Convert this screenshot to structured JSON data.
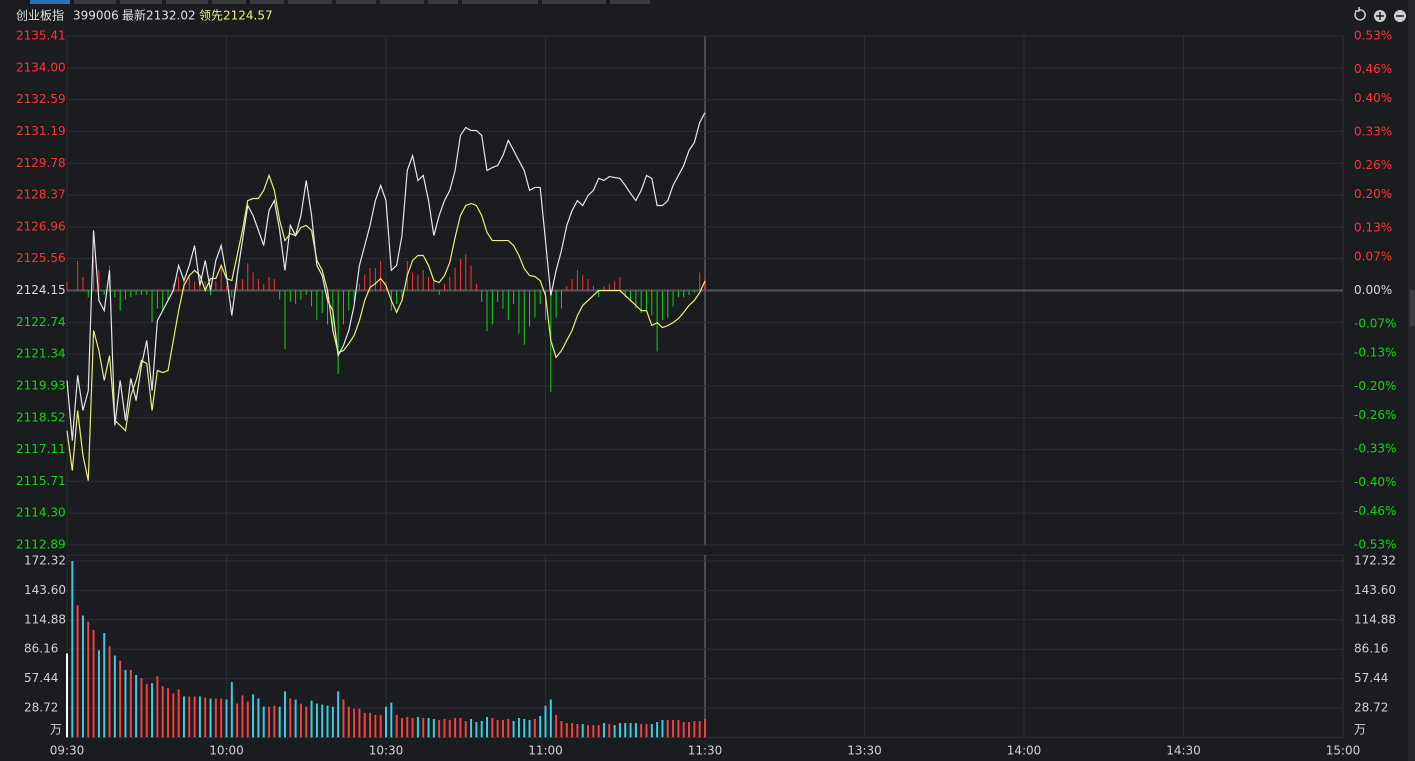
{
  "header": {
    "name": "创业板指",
    "code": "399006"
  },
  "chart_data": [
    {
      "type": "line",
      "xlim": [
        0,
        240
      ],
      "xticks": [
        {
          "value": 0,
          "label": "09:30"
        },
        {
          "value": 30,
          "label": "10:00"
        },
        {
          "value": 60,
          "label": "10:30"
        },
        {
          "value": 90,
          "label": "11:00"
        },
        {
          "value": 120,
          "label": "11:30"
        },
        {
          "value": 150,
          "label": "13:30"
        },
        {
          "value": 180,
          "label": "14:00"
        },
        {
          "value": 210,
          "label": "14:30"
        },
        {
          "value": 240,
          "label": "15:00"
        }
      ],
      "ylim": [
        2112.89,
        2135.41
      ],
      "yticks": [
        2135.41,
        {
          "value": 2134,
          "label": "2134.00"
        },
        2132.59,
        2131.19,
        2129.78,
        2128.37,
        2126.96,
        2125.56,
        2124.15,
        2122.74,
        2121.34,
        2119.93,
        2118.52,
        2117.11,
        2115.71,
        {
          "value": 2114.3,
          "label": "2114.30"
        },
        2112.89
      ],
      "y2lim": [
        -0.53,
        0.53
      ],
      "y2ticks": [
        {
          "value": 0.53,
          "label": "0.53%"
        },
        {
          "value": 0.46,
          "label": "0.46%"
        },
        {
          "value": 0.4,
          "label": "0.40%"
        },
        {
          "value": 0.33,
          "label": "0.33%"
        },
        {
          "value": 0.26,
          "label": "0.26%"
        },
        {
          "value": 0.2,
          "label": "0.20%"
        },
        {
          "value": 0.13,
          "label": "0.13%"
        },
        {
          "value": 0.07,
          "label": "0.07%"
        },
        {
          "value": 0,
          "label": "0.00%"
        },
        {
          "value": -0.07,
          "label": "-0.07%"
        },
        {
          "value": -0.13,
          "label": "-0.13%"
        },
        {
          "value": -0.2,
          "label": "-0.20%"
        },
        {
          "value": -0.26,
          "label": "-0.26%"
        },
        {
          "value": -0.33,
          "label": "-0.33%"
        },
        {
          "value": -0.4,
          "label": "-0.40%"
        },
        {
          "value": -0.46,
          "label": "-0.46%"
        },
        {
          "value": -0.53,
          "label": "-0.53%"
        }
      ],
      "up_color": "#ff3232",
      "down_color": "#11d411",
      "flat_color": "#d8d8d8",
      "series": [
        {
          "name": "最新",
          "color": "#e6e6e6",
          "values": [
            2120.17,
            2117.51,
            2120.39,
            2118.84,
            2119.72,
            2126.81,
            2123.71,
            2123.26,
            2125.04,
            2118.18,
            2120.17,
            2118.4,
            2120.26,
            2119.28,
            2120.83,
            2121.94,
            2119.72,
            2122.82,
            2123.26,
            2123.71,
            2124.15,
            2125.26,
            2124.59,
            2125.26,
            2126.14,
            2124.37,
            2125.48,
            2124.15,
            2125.48,
            2126.14,
            2124.81,
            2123.04,
            2124.81,
            2126.36,
            2127.91,
            2127.47,
            2126.81,
            2126.14,
            2127.69,
            2128.13,
            2126.81,
            2125.04,
            2127.03,
            2126.58,
            2127.47,
            2129.02,
            2127.47,
            2125.26,
            2124.81,
            2123.71,
            2123.26,
            2121.27,
            2121.72,
            2122.38,
            2123.49,
            2125.26,
            2126.14,
            2127.03,
            2128.13,
            2128.8,
            2128.13,
            2125.04,
            2125.26,
            2126.58,
            2129.46,
            2130.12,
            2129.02,
            2129.24,
            2128.13,
            2126.58,
            2127.47,
            2128.13,
            2128.58,
            2129.46,
            2131.01,
            2131.36,
            2131.23,
            2131.23,
            2131.01,
            2129.46,
            2129.59,
            2129.68,
            2130.12,
            2130.79,
            2130.35,
            2129.9,
            2129.46,
            2128.58,
            2128.71,
            2128.71,
            2126.36,
            2123.93,
            2125.04,
            2125.92,
            2127.03,
            2127.69,
            2128.13,
            2127.91,
            2128.35,
            2128.58,
            2129.11,
            2129.02,
            2129.19,
            2129.15,
            2129.11,
            2128.8,
            2128.44,
            2128.13,
            2128.58,
            2129.24,
            2129.11,
            2127.91,
            2127.91,
            2128.13,
            2128.8,
            2129.24,
            2129.68,
            2130.35,
            2130.7,
            2131.58,
            2132.02
          ]
        },
        {
          "name": "领先",
          "color": "#ecec7c",
          "values": [
            2117.95,
            2116.18,
            2118.84,
            2116.85,
            2115.74,
            2122.38,
            2121.49,
            2120.17,
            2121.27,
            2118.4,
            2118.18,
            2117.95,
            2119.5,
            2120.17,
            2121.05,
            2120.92,
            2118.84,
            2120.61,
            2120.52,
            2120.61,
            2121.94,
            2123.26,
            2124.37,
            2124.81,
            2125.04,
            2124.81,
            2124.15,
            2124.68,
            2124.68,
            2125.26,
            2124.68,
            2124.59,
            2125.7,
            2126.81,
            2128.13,
            2128.22,
            2128.22,
            2128.58,
            2129.24,
            2128.58,
            2127.25,
            2126.36,
            2126.67,
            2126.58,
            2126.94,
            2127.03,
            2126.81,
            2125.48,
            2125.04,
            2124.15,
            2122.38,
            2121.41,
            2121.49,
            2121.8,
            2122.16,
            2122.82,
            2123.71,
            2124.28,
            2124.46,
            2124.68,
            2124.37,
            2123.71,
            2123.18,
            2123.71,
            2124.81,
            2125.48,
            2125.7,
            2125.7,
            2125.26,
            2124.59,
            2124.5,
            2124.81,
            2125.39,
            2126.5,
            2127.47,
            2127.91,
            2128.0,
            2127.91,
            2127.47,
            2126.72,
            2126.36,
            2126.36,
            2126.36,
            2126.36,
            2126.14,
            2125.7,
            2125.12,
            2124.81,
            2124.77,
            2124.59,
            2123.93,
            2121.94,
            2121.19,
            2121.49,
            2121.94,
            2122.38,
            2123.04,
            2123.49,
            2123.71,
            2123.93,
            2124.15,
            2124.15,
            2124.15,
            2124.15,
            2124.15,
            2123.93,
            2123.71,
            2123.49,
            2123.26,
            2123.26,
            2122.6,
            2122.73,
            2122.51,
            2122.6,
            2122.73,
            2122.91,
            2123.18,
            2123.49,
            2123.71,
            2124.06,
            2124.57
          ]
        }
      ],
      "signal_bars": {
        "values": [
          0.4,
          0,
          1.3,
          0.6,
          -0.3,
          1.5,
          0.9,
          -0.2,
          1.1,
          -0.3,
          -0.9,
          -0.4,
          -0.3,
          -0.2,
          -0.2,
          -0.2,
          -1.4,
          -0.8,
          -0.9,
          -0.4,
          0.3,
          0.6,
          0.5,
          0.7,
          0.4,
          0.3,
          0.4,
          -0.2,
          0.4,
          1.0,
          0.2,
          -0.3,
          0.6,
          0.5,
          1.2,
          0.8,
          0.5,
          0.3,
          0.6,
          0.5,
          -0.4,
          -2.6,
          -0.5,
          -0.6,
          -0.4,
          -0.2,
          -0.7,
          -1.3,
          -1.0,
          -1.5,
          -1.8,
          -3.7,
          -1.5,
          -0.9,
          -0.5,
          0.3,
          0.7,
          1.0,
          1.0,
          1.3,
          0.4,
          -0.9,
          -0.6,
          -0.5,
          1.3,
          0.8,
          0.7,
          0.9,
          0.6,
          0.5,
          -0.2,
          0.3,
          0.6,
          1.0,
          1.4,
          1.6,
          1.1,
          0.3,
          -0.5,
          -1.8,
          -1.5,
          -0.5,
          -0.8,
          -1.3,
          -0.6,
          -1.9,
          -2.4,
          -1.6,
          -1.2,
          -0.6,
          -1.3,
          -4.5,
          -1.2,
          -0.8,
          0.2,
          0.5,
          0.9,
          0.7,
          0.5,
          0.2,
          -0.3,
          0.2,
          0.3,
          0.4,
          0.6,
          -0.3,
          -0.5,
          -0.8,
          -1.0,
          -0.9,
          -1.1,
          -2.7,
          -1.3,
          -1.2,
          -0.7,
          -0.3,
          -0.3,
          -0.2,
          -0.1,
          0.8,
          0.5
        ]
      }
    },
    {
      "type": "bar",
      "ylim": [
        0,
        172.32
      ],
      "yticks": [
        172.32,
        {
          "value": 143.6,
          "label": "143.60"
        },
        114.88,
        86.16,
        57.44,
        28.72
      ],
      "unit": "万",
      "up_color": "#f0423f",
      "down_color": "#3ccbe0",
      "flat_color": "#ffffff",
      "values": [
        82,
        172.32,
        129,
        119,
        113,
        105,
        85,
        102,
        89,
        80,
        75,
        66,
        66,
        61,
        58,
        52,
        53,
        60,
        50,
        48,
        43,
        47,
        40,
        40,
        40,
        40,
        39,
        38,
        38,
        38,
        37,
        54,
        33,
        41,
        35,
        42,
        38,
        30,
        30,
        31,
        30,
        45,
        38,
        37,
        33,
        30,
        36,
        33,
        32,
        31,
        30,
        45,
        37,
        30,
        28,
        28,
        24,
        24,
        22,
        22,
        30,
        34,
        22,
        19,
        20,
        19,
        20,
        19,
        19,
        18,
        17,
        18,
        17,
        19,
        19,
        16,
        18,
        15,
        16,
        20,
        19,
        17,
        17,
        18,
        16,
        19,
        18,
        17,
        18,
        21,
        31,
        37,
        22,
        16,
        14,
        14,
        13,
        13,
        12,
        12,
        12,
        14,
        13,
        12,
        14,
        14,
        14,
        14,
        13,
        13,
        13,
        15,
        17,
        17,
        17,
        17,
        15,
        15,
        16,
        16,
        18
      ]
    }
  ]
}
